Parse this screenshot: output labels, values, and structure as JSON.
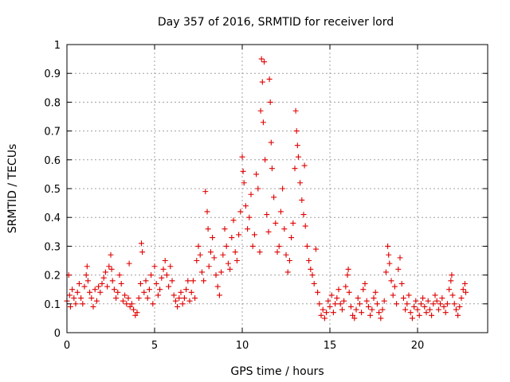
{
  "chart_data": {
    "type": "scatter",
    "title": "Day 357 of 2016, SRMTID for receiver lord",
    "xlabel": "GPS time / hours",
    "ylabel": "SRMTID / TECUs",
    "xlim": [
      0,
      24
    ],
    "ylim": [
      0,
      1
    ],
    "xticks": [
      0,
      5,
      10,
      15,
      20
    ],
    "yticks": [
      0,
      0.1,
      0.2,
      0.3,
      0.4,
      0.5,
      0.6,
      0.7,
      0.8,
      0.9,
      1
    ],
    "grid": true,
    "marker": "+",
    "color": "#e00000",
    "series": [
      {
        "name": "SRMTID",
        "points": [
          [
            0.0,
            0.11
          ],
          [
            0.1,
            0.2
          ],
          [
            0.15,
            0.13
          ],
          [
            0.2,
            0.09
          ],
          [
            0.3,
            0.15
          ],
          [
            0.4,
            0.12
          ],
          [
            0.5,
            0.1
          ],
          [
            0.6,
            0.14
          ],
          [
            0.7,
            0.17
          ],
          [
            0.8,
            0.12
          ],
          [
            0.9,
            0.1
          ],
          [
            1.0,
            0.16
          ],
          [
            1.1,
            0.2
          ],
          [
            1.15,
            0.23
          ],
          [
            1.2,
            0.18
          ],
          [
            1.3,
            0.14
          ],
          [
            1.4,
            0.12
          ],
          [
            1.5,
            0.09
          ],
          [
            1.6,
            0.15
          ],
          [
            1.7,
            0.11
          ],
          [
            1.8,
            0.16
          ],
          [
            1.9,
            0.14
          ],
          [
            2.0,
            0.17
          ],
          [
            2.1,
            0.19
          ],
          [
            2.2,
            0.21
          ],
          [
            2.3,
            0.16
          ],
          [
            2.4,
            0.23
          ],
          [
            2.5,
            0.27
          ],
          [
            2.55,
            0.22
          ],
          [
            2.6,
            0.18
          ],
          [
            2.7,
            0.15
          ],
          [
            2.8,
            0.12
          ],
          [
            2.9,
            0.14
          ],
          [
            3.0,
            0.2
          ],
          [
            3.1,
            0.17
          ],
          [
            3.2,
            0.11
          ],
          [
            3.3,
            0.13
          ],
          [
            3.4,
            0.1
          ],
          [
            3.5,
            0.12
          ],
          [
            3.55,
            0.24
          ],
          [
            3.6,
            0.09
          ],
          [
            3.7,
            0.1
          ],
          [
            3.8,
            0.08
          ],
          [
            3.9,
            0.06
          ],
          [
            4.0,
            0.07
          ],
          [
            4.1,
            0.12
          ],
          [
            4.2,
            0.17
          ],
          [
            4.25,
            0.31
          ],
          [
            4.3,
            0.28
          ],
          [
            4.4,
            0.14
          ],
          [
            4.5,
            0.18
          ],
          [
            4.6,
            0.12
          ],
          [
            4.7,
            0.15
          ],
          [
            4.8,
            0.2
          ],
          [
            4.9,
            0.1
          ],
          [
            5.0,
            0.23
          ],
          [
            5.1,
            0.17
          ],
          [
            5.2,
            0.13
          ],
          [
            5.3,
            0.15
          ],
          [
            5.4,
            0.19
          ],
          [
            5.5,
            0.22
          ],
          [
            5.6,
            0.25
          ],
          [
            5.7,
            0.2
          ],
          [
            5.8,
            0.16
          ],
          [
            5.9,
            0.23
          ],
          [
            6.0,
            0.18
          ],
          [
            6.1,
            0.13
          ],
          [
            6.2,
            0.11
          ],
          [
            6.3,
            0.09
          ],
          [
            6.4,
            0.12
          ],
          [
            6.5,
            0.14
          ],
          [
            6.6,
            0.1
          ],
          [
            6.7,
            0.12
          ],
          [
            6.8,
            0.15
          ],
          [
            6.9,
            0.18
          ],
          [
            7.0,
            0.11
          ],
          [
            7.1,
            0.14
          ],
          [
            7.2,
            0.18
          ],
          [
            7.3,
            0.12
          ],
          [
            7.4,
            0.25
          ],
          [
            7.5,
            0.3
          ],
          [
            7.6,
            0.27
          ],
          [
            7.7,
            0.21
          ],
          [
            7.8,
            0.18
          ],
          [
            7.9,
            0.49
          ],
          [
            8.0,
            0.42
          ],
          [
            8.05,
            0.36
          ],
          [
            8.1,
            0.23
          ],
          [
            8.2,
            0.28
          ],
          [
            8.3,
            0.33
          ],
          [
            8.4,
            0.26
          ],
          [
            8.5,
            0.2
          ],
          [
            8.6,
            0.16
          ],
          [
            8.7,
            0.13
          ],
          [
            8.8,
            0.21
          ],
          [
            8.9,
            0.27
          ],
          [
            9.0,
            0.36
          ],
          [
            9.1,
            0.3
          ],
          [
            9.2,
            0.24
          ],
          [
            9.3,
            0.22
          ],
          [
            9.4,
            0.33
          ],
          [
            9.5,
            0.39
          ],
          [
            9.6,
            0.28
          ],
          [
            9.7,
            0.25
          ],
          [
            9.8,
            0.34
          ],
          [
            9.9,
            0.42
          ],
          [
            10.0,
            0.61
          ],
          [
            10.05,
            0.56
          ],
          [
            10.1,
            0.52
          ],
          [
            10.2,
            0.44
          ],
          [
            10.3,
            0.36
          ],
          [
            10.4,
            0.4
          ],
          [
            10.5,
            0.48
          ],
          [
            10.6,
            0.3
          ],
          [
            10.7,
            0.34
          ],
          [
            10.8,
            0.55
          ],
          [
            10.9,
            0.5
          ],
          [
            11.0,
            0.28
          ],
          [
            11.05,
            0.77
          ],
          [
            11.1,
            0.95
          ],
          [
            11.15,
            0.87
          ],
          [
            11.2,
            0.73
          ],
          [
            11.25,
            0.94
          ],
          [
            11.3,
            0.6
          ],
          [
            11.4,
            0.41
          ],
          [
            11.5,
            0.35
          ],
          [
            11.55,
            0.88
          ],
          [
            11.6,
            0.8
          ],
          [
            11.65,
            0.66
          ],
          [
            11.7,
            0.57
          ],
          [
            11.8,
            0.47
          ],
          [
            11.9,
            0.38
          ],
          [
            12.0,
            0.28
          ],
          [
            12.1,
            0.3
          ],
          [
            12.2,
            0.42
          ],
          [
            12.3,
            0.5
          ],
          [
            12.4,
            0.36
          ],
          [
            12.5,
            0.27
          ],
          [
            12.6,
            0.21
          ],
          [
            12.7,
            0.25
          ],
          [
            12.8,
            0.33
          ],
          [
            12.9,
            0.38
          ],
          [
            13.0,
            0.57
          ],
          [
            13.05,
            0.77
          ],
          [
            13.1,
            0.7
          ],
          [
            13.15,
            0.65
          ],
          [
            13.2,
            0.61
          ],
          [
            13.3,
            0.52
          ],
          [
            13.4,
            0.46
          ],
          [
            13.5,
            0.41
          ],
          [
            13.55,
            0.58
          ],
          [
            13.6,
            0.37
          ],
          [
            13.7,
            0.3
          ],
          [
            13.8,
            0.25
          ],
          [
            13.9,
            0.22
          ],
          [
            14.0,
            0.2
          ],
          [
            14.1,
            0.17
          ],
          [
            14.2,
            0.29
          ],
          [
            14.3,
            0.14
          ],
          [
            14.4,
            0.1
          ],
          [
            14.5,
            0.06
          ],
          [
            14.6,
            0.08
          ],
          [
            14.7,
            0.05
          ],
          [
            14.8,
            0.07
          ],
          [
            14.9,
            0.11
          ],
          [
            15.0,
            0.09
          ],
          [
            15.1,
            0.13
          ],
          [
            15.2,
            0.07
          ],
          [
            15.3,
            0.1
          ],
          [
            15.4,
            0.12
          ],
          [
            15.5,
            0.15
          ],
          [
            15.6,
            0.1
          ],
          [
            15.7,
            0.08
          ],
          [
            15.8,
            0.11
          ],
          [
            15.9,
            0.16
          ],
          [
            16.0,
            0.2
          ],
          [
            16.05,
            0.22
          ],
          [
            16.1,
            0.14
          ],
          [
            16.2,
            0.09
          ],
          [
            16.3,
            0.06
          ],
          [
            16.4,
            0.05
          ],
          [
            16.5,
            0.08
          ],
          [
            16.6,
            0.12
          ],
          [
            16.7,
            0.1
          ],
          [
            16.8,
            0.07
          ],
          [
            16.9,
            0.15
          ],
          [
            17.0,
            0.17
          ],
          [
            17.1,
            0.11
          ],
          [
            17.2,
            0.09
          ],
          [
            17.3,
            0.06
          ],
          [
            17.4,
            0.08
          ],
          [
            17.5,
            0.12
          ],
          [
            17.6,
            0.14
          ],
          [
            17.7,
            0.1
          ],
          [
            17.8,
            0.07
          ],
          [
            17.9,
            0.05
          ],
          [
            18.0,
            0.08
          ],
          [
            18.1,
            0.11
          ],
          [
            18.2,
            0.21
          ],
          [
            18.3,
            0.3
          ],
          [
            18.35,
            0.27
          ],
          [
            18.4,
            0.24
          ],
          [
            18.5,
            0.18
          ],
          [
            18.6,
            0.13
          ],
          [
            18.7,
            0.16
          ],
          [
            18.8,
            0.1
          ],
          [
            18.9,
            0.22
          ],
          [
            19.0,
            0.26
          ],
          [
            19.1,
            0.17
          ],
          [
            19.2,
            0.12
          ],
          [
            19.3,
            0.08
          ],
          [
            19.4,
            0.1
          ],
          [
            19.5,
            0.13
          ],
          [
            19.6,
            0.07
          ],
          [
            19.7,
            0.05
          ],
          [
            19.8,
            0.09
          ],
          [
            19.9,
            0.11
          ],
          [
            20.0,
            0.08
          ],
          [
            20.1,
            0.06
          ],
          [
            20.2,
            0.1
          ],
          [
            20.3,
            0.12
          ],
          [
            20.4,
            0.09
          ],
          [
            20.5,
            0.07
          ],
          [
            20.6,
            0.11
          ],
          [
            20.7,
            0.08
          ],
          [
            20.8,
            0.06
          ],
          [
            20.9,
            0.1
          ],
          [
            21.0,
            0.13
          ],
          [
            21.1,
            0.11
          ],
          [
            21.2,
            0.08
          ],
          [
            21.3,
            0.1
          ],
          [
            21.4,
            0.12
          ],
          [
            21.5,
            0.09
          ],
          [
            21.6,
            0.07
          ],
          [
            21.7,
            0.1
          ],
          [
            21.8,
            0.15
          ],
          [
            21.9,
            0.18
          ],
          [
            21.95,
            0.2
          ],
          [
            22.0,
            0.13
          ],
          [
            22.1,
            0.1
          ],
          [
            22.2,
            0.08
          ],
          [
            22.3,
            0.06
          ],
          [
            22.4,
            0.09
          ],
          [
            22.5,
            0.12
          ],
          [
            22.6,
            0.15
          ],
          [
            22.7,
            0.17
          ],
          [
            22.75,
            0.14
          ]
        ]
      }
    ]
  }
}
